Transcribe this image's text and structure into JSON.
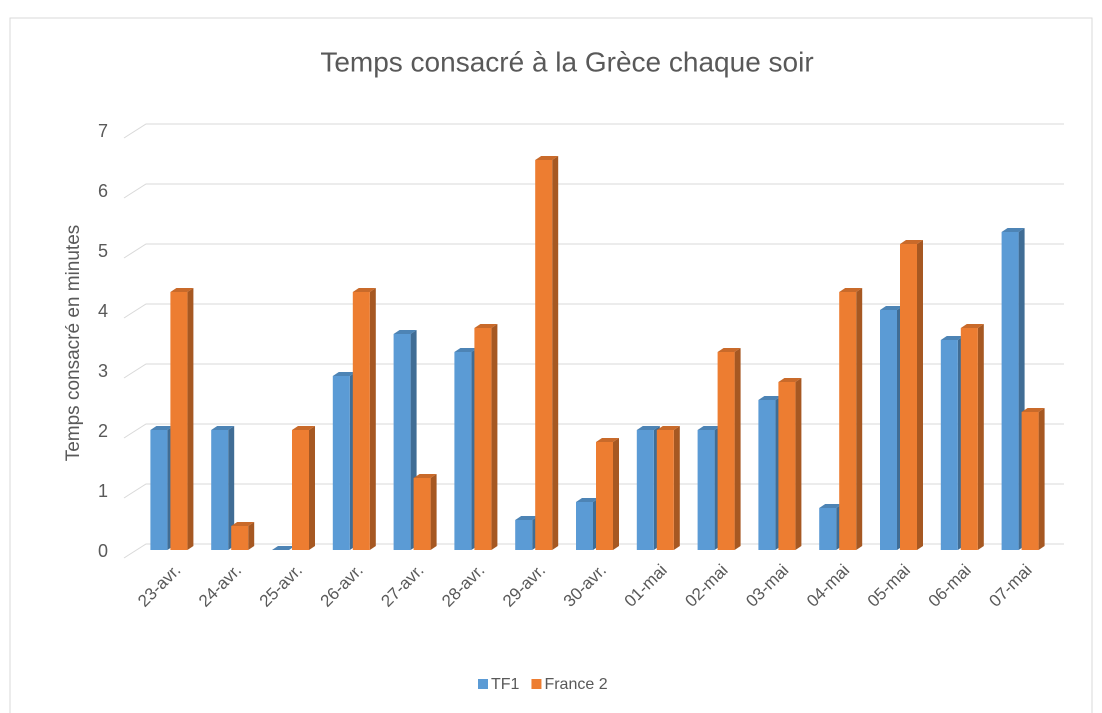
{
  "chart_data": {
    "type": "bar3d",
    "title": "Temps consacré à la Grèce chaque soir",
    "y_label": "Temps consacré en minutes",
    "categories": [
      "23-avr.",
      "24-avr.",
      "25-avr.",
      "26-avr.",
      "27-avr.",
      "28-avr.",
      "29-avr.",
      "30-avr.",
      "01-mai",
      "02-mai",
      "03-mai",
      "04-mai",
      "05-mai",
      "06-mai",
      "07-mai"
    ],
    "series": [
      {
        "name": "TF1",
        "color": "#5b9bd5",
        "values": [
          2,
          2,
          0,
          2.9,
          3.6,
          3.3,
          0.5,
          0.8,
          2,
          2,
          2.5,
          0.7,
          4,
          3.5,
          5.3
        ]
      },
      {
        "name": "France 2",
        "color": "#ed7d31",
        "values": [
          4.3,
          0.4,
          2,
          4.3,
          1.2,
          3.7,
          6.5,
          1.8,
          2,
          3.3,
          2.8,
          4.3,
          5.1,
          3.7,
          2.3
        ]
      }
    ],
    "ylim": [
      0,
      7
    ],
    "yticks": [
      0,
      1,
      2,
      3,
      4,
      5,
      6,
      7
    ],
    "grid": true,
    "legend": "bottom"
  }
}
